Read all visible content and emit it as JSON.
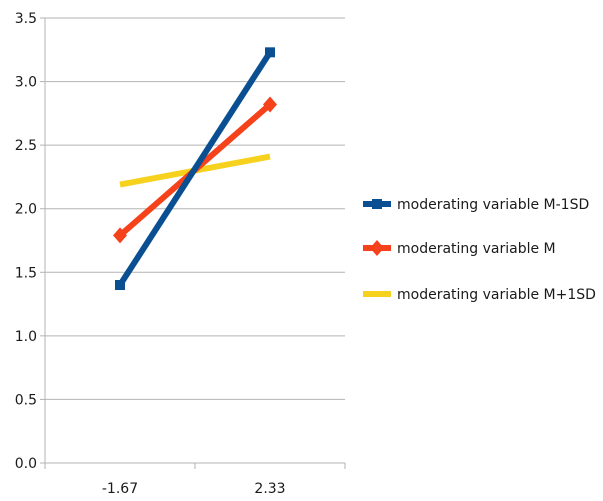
{
  "chart_data": {
    "type": "line",
    "title": "",
    "xlabel": "",
    "ylabel": "",
    "categories": [
      "-1.67",
      "2.33"
    ],
    "ylim": [
      0,
      3.5
    ],
    "yticks": [
      "0.0",
      "0.5",
      "1.0",
      "1.5",
      "2.0",
      "2.5",
      "3.0",
      "3.5"
    ],
    "grid": "horizontal",
    "legend_position": "right",
    "series": [
      {
        "name": "moderating variable M-1SD",
        "values": [
          1.4,
          3.23
        ],
        "color": "#0a4f92",
        "marker": "square"
      },
      {
        "name": "moderating variable M",
        "values": [
          1.79,
          2.82
        ],
        "color": "#f5421a",
        "marker": "diamond"
      },
      {
        "name": "moderating variable M+1SD",
        "values": [
          2.19,
          2.41
        ],
        "color": "#f6d21f",
        "marker": "none"
      }
    ]
  }
}
